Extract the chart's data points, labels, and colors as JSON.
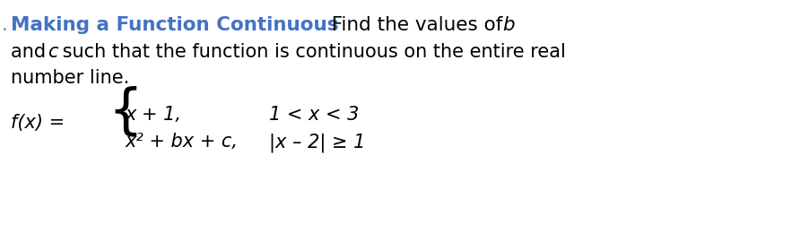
{
  "background_color": "#ffffff",
  "title_bold": "Making a Function Continuous",
  "title_color": "#4472c4",
  "find_text": "  Find the values of ",
  "b_italic": "b",
  "line2_and": "and ",
  "line2_c": "c",
  "line2_rest": " such that the function is continuous on the entire real",
  "line3": "number line.",
  "fx_label": "f(x) =",
  "case1_left": "x + 1,",
  "case1_right": "1 < x < 3",
  "case2_left": "x² + bx + c,",
  "case2_right": "|x – 2| ≥ 1",
  "period_prefix": ". ",
  "font_size_title": 15.5,
  "font_size_body": 15.0,
  "font_size_math": 15.0,
  "title_color_hex": "#4472c4"
}
